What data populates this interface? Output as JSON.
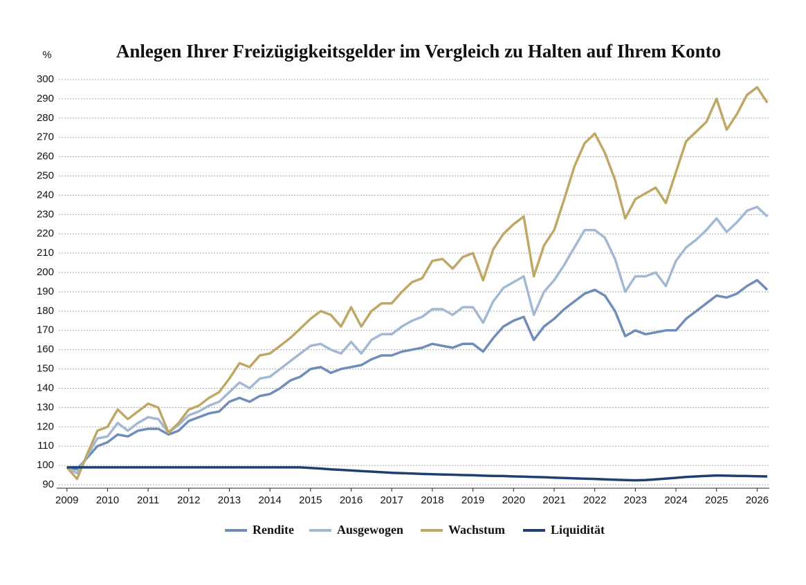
{
  "chart_data": {
    "type": "line",
    "title": "Anlegen Ihrer Freizügigkeitsgelder im Vergleich zu Halten auf Ihrem Konto",
    "y_label": "%",
    "x": [
      2009,
      2009.25,
      2009.5,
      2009.75,
      2010,
      2010.25,
      2010.5,
      2010.75,
      2011,
      2011.25,
      2011.5,
      2011.75,
      2012,
      2012.25,
      2012.5,
      2012.75,
      2013,
      2013.25,
      2013.5,
      2013.75,
      2014,
      2014.25,
      2014.5,
      2014.75,
      2015,
      2015.25,
      2015.5,
      2015.75,
      2016,
      2016.25,
      2016.5,
      2016.75,
      2017,
      2017.25,
      2017.5,
      2017.75,
      2018,
      2018.25,
      2018.5,
      2018.75,
      2019,
      2019.25,
      2019.5,
      2019.75,
      2020,
      2020.25,
      2020.5,
      2020.75,
      2021,
      2021.25,
      2021.5,
      2021.75,
      2022,
      2022.25,
      2022.5,
      2022.75,
      2023,
      2023.25,
      2023.5,
      2023.75,
      2024,
      2024.25,
      2024.5,
      2024.75,
      2025,
      2025.25,
      2025.5,
      2025.75,
      2026,
      2026.25
    ],
    "series": [
      {
        "name": "Rendite",
        "color": "#6f8db8",
        "values": [
          99,
          98,
          104,
          110,
          112,
          116,
          115,
          118,
          119,
          119,
          116,
          118,
          123,
          125,
          127,
          128,
          133,
          135,
          133,
          136,
          137,
          140,
          144,
          146,
          150,
          151,
          148,
          150,
          151,
          152,
          155,
          157,
          157,
          159,
          160,
          161,
          163,
          162,
          161,
          163,
          163,
          159,
          166,
          172,
          175,
          177,
          165,
          172,
          176,
          181,
          185,
          189,
          191,
          188,
          180,
          167,
          170,
          168,
          169,
          170,
          170,
          176,
          180,
          184,
          188,
          187,
          189,
          193,
          196,
          191
        ]
      },
      {
        "name": "Ausgewogen",
        "color": "#a3b8d3",
        "values": [
          99,
          96,
          105,
          114,
          115,
          122,
          118,
          122,
          125,
          124,
          117,
          121,
          126,
          128,
          131,
          133,
          138,
          143,
          140,
          145,
          146,
          150,
          154,
          158,
          162,
          163,
          160,
          158,
          164,
          158,
          165,
          168,
          168,
          172,
          175,
          177,
          181,
          181,
          178,
          182,
          182,
          174,
          185,
          192,
          195,
          198,
          178,
          190,
          196,
          204,
          213,
          222,
          222,
          218,
          207,
          190,
          198,
          198,
          200,
          193,
          206,
          213,
          217,
          222,
          228,
          221,
          226,
          232,
          234,
          229
        ]
      },
      {
        "name": "Wachstum",
        "color": "#bfa866",
        "values": [
          99,
          93,
          106,
          118,
          120,
          129,
          124,
          128,
          132,
          130,
          117,
          122,
          129,
          131,
          135,
          138,
          145,
          153,
          151,
          157,
          158,
          162,
          166,
          171,
          176,
          180,
          178,
          172,
          182,
          172,
          180,
          184,
          184,
          190,
          195,
          197,
          206,
          207,
          202,
          208,
          210,
          196,
          212,
          220,
          225,
          229,
          198,
          214,
          222,
          238,
          255,
          267,
          272,
          262,
          248,
          228,
          238,
          241,
          244,
          236,
          252,
          268,
          273,
          278,
          290,
          274,
          282,
          292,
          296,
          288
        ]
      },
      {
        "name": "Liquidität",
        "color": "#1d3f72",
        "values": [
          99,
          99,
          99,
          99,
          99,
          99,
          99,
          99,
          99,
          99,
          99,
          99,
          99,
          99,
          99,
          99,
          99,
          99,
          99,
          99,
          99,
          99,
          99,
          99,
          98.7,
          98.4,
          98,
          97.7,
          97.4,
          97.1,
          96.8,
          96.5,
          96.2,
          96,
          95.8,
          95.6,
          95.5,
          95.3,
          95.2,
          95,
          94.9,
          94.7,
          94.6,
          94.5,
          94.3,
          94.2,
          94,
          93.9,
          93.7,
          93.5,
          93.3,
          93.1,
          93,
          92.8,
          92.6,
          92.4,
          92.3,
          92.4,
          92.8,
          93.2,
          93.6,
          94,
          94.3,
          94.6,
          94.8,
          94.7,
          94.6,
          94.5,
          94.4,
          94.3
        ]
      }
    ],
    "xlim": [
      2008.8,
      2026.3
    ],
    "xticks": [
      2009,
      2010,
      2011,
      2012,
      2013,
      2014,
      2015,
      2016,
      2017,
      2018,
      2019,
      2020,
      2021,
      2022,
      2023,
      2024,
      2025,
      2026
    ],
    "ylim": [
      90,
      300
    ],
    "yticks": [
      90,
      100,
      110,
      120,
      130,
      140,
      150,
      160,
      170,
      180,
      190,
      200,
      210,
      220,
      230,
      240,
      250,
      260,
      270,
      280,
      290,
      300
    ],
    "grid": true
  }
}
